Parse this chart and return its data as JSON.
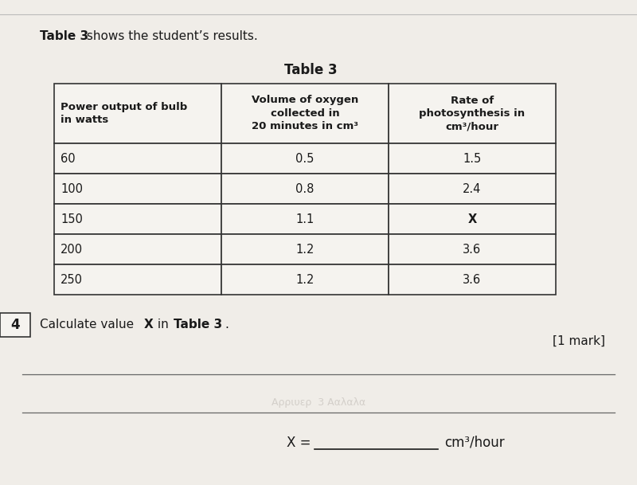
{
  "title_bold": "Table 3",
  "title_rest": " shows the student’s results.",
  "table_title": "Table 3",
  "col_headers": [
    "Power output of bulb\nin watts",
    "Volume of oxygen\ncollected in\n20 minutes in cm³",
    "Rate of\nphotosynthesis in\ncm³/hour"
  ],
  "header_align": [
    "left",
    "center",
    "center"
  ],
  "rows": [
    [
      "60",
      "0.5",
      "1.5"
    ],
    [
      "100",
      "0.8",
      "2.4"
    ],
    [
      "150",
      "1.1",
      "X"
    ],
    [
      "200",
      "1.2",
      "3.6"
    ],
    [
      "250",
      "1.2",
      "3.6"
    ]
  ],
  "question_number": "4",
  "mark_text": "[1 mark]",
  "answer_label": "X =",
  "answer_unit": "cm³/hour",
  "bg_color": "#e8e5e0",
  "table_bg": "#f5f3ef",
  "border_color": "#333333",
  "text_color": "#1a1a1a"
}
